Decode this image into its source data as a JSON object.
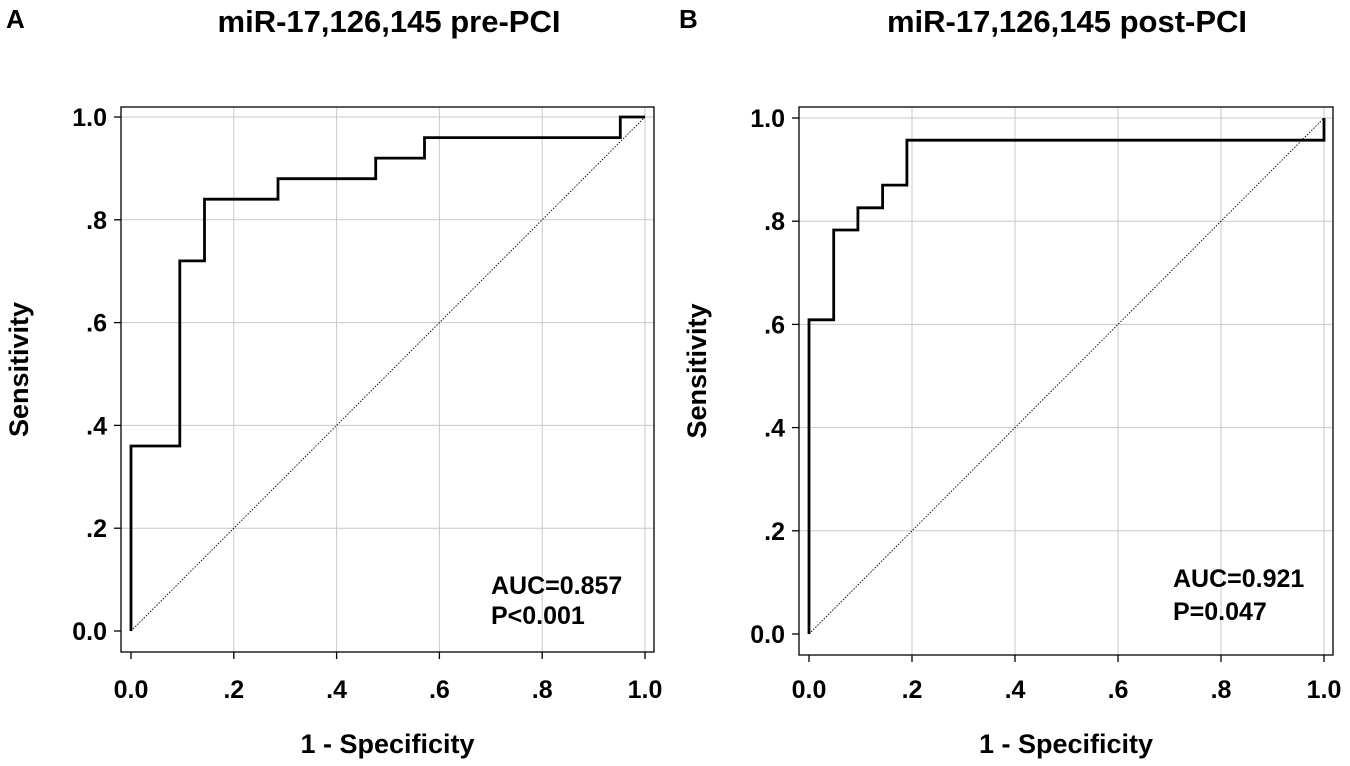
{
  "chart_data": [
    {
      "panel_label": "A",
      "type": "line",
      "title": "miR-17,126,145 pre-PCI",
      "xlabel": "1 - Specificity",
      "ylabel": "Sensitivity",
      "xlim": [
        0,
        1
      ],
      "ylim": [
        0,
        1
      ],
      "xticks": [
        0,
        0.2,
        0.4,
        0.6,
        0.8,
        1.0
      ],
      "yticks": [
        0,
        0.2,
        0.4,
        0.6,
        0.8,
        1.0
      ],
      "xtick_labels": [
        "0.0",
        ".2",
        ".4",
        ".6",
        ".8",
        "1.0"
      ],
      "ytick_labels": [
        "0.0",
        ".2",
        ".4",
        ".6",
        ".8",
        "1.0"
      ],
      "grid": true,
      "series": [
        {
          "name": "ROC curve",
          "style": "solid",
          "x": [
            0.0,
            0.0,
            0.095,
            0.095,
            0.143,
            0.143,
            0.286,
            0.286,
            0.476,
            0.476,
            0.571,
            0.571,
            0.952,
            0.952,
            1.0
          ],
          "y": [
            0.0,
            0.36,
            0.36,
            0.72,
            0.72,
            0.84,
            0.84,
            0.88,
            0.88,
            0.92,
            0.92,
            0.96,
            0.96,
            1.0,
            1.0
          ]
        },
        {
          "name": "Reference line",
          "style": "dotted",
          "x": [
            0,
            1
          ],
          "y": [
            0,
            1
          ]
        }
      ],
      "annotations": [
        "AUC=0.857",
        "P<0.001"
      ]
    },
    {
      "panel_label": "B",
      "type": "line",
      "title": "miR-17,126,145 post-PCI",
      "xlabel": "1 - Specificity",
      "ylabel": "Sensitivity",
      "xlim": [
        0,
        1
      ],
      "ylim": [
        0,
        1
      ],
      "xticks": [
        0,
        0.2,
        0.4,
        0.6,
        0.8,
        1.0
      ],
      "yticks": [
        0,
        0.2,
        0.4,
        0.6,
        0.8,
        1.0
      ],
      "xtick_labels": [
        "0.0",
        ".2",
        ".4",
        ".6",
        ".8",
        "1.0"
      ],
      "ytick_labels": [
        "0.0",
        ".2",
        ".4",
        ".6",
        ".8",
        "1.0"
      ],
      "grid": true,
      "series": [
        {
          "name": "ROC curve",
          "style": "solid",
          "x": [
            0.0,
            0.0,
            0.048,
            0.048,
            0.095,
            0.095,
            0.143,
            0.143,
            0.19,
            0.19,
            1.0,
            1.0
          ],
          "y": [
            0.0,
            0.609,
            0.609,
            0.783,
            0.783,
            0.826,
            0.826,
            0.87,
            0.87,
            0.957,
            0.957,
            1.0
          ]
        },
        {
          "name": "Reference line",
          "style": "dotted",
          "x": [
            0,
            1
          ],
          "y": [
            0,
            1
          ]
        }
      ],
      "annotations": [
        "AUC=0.921",
        "P=0.047"
      ]
    }
  ]
}
